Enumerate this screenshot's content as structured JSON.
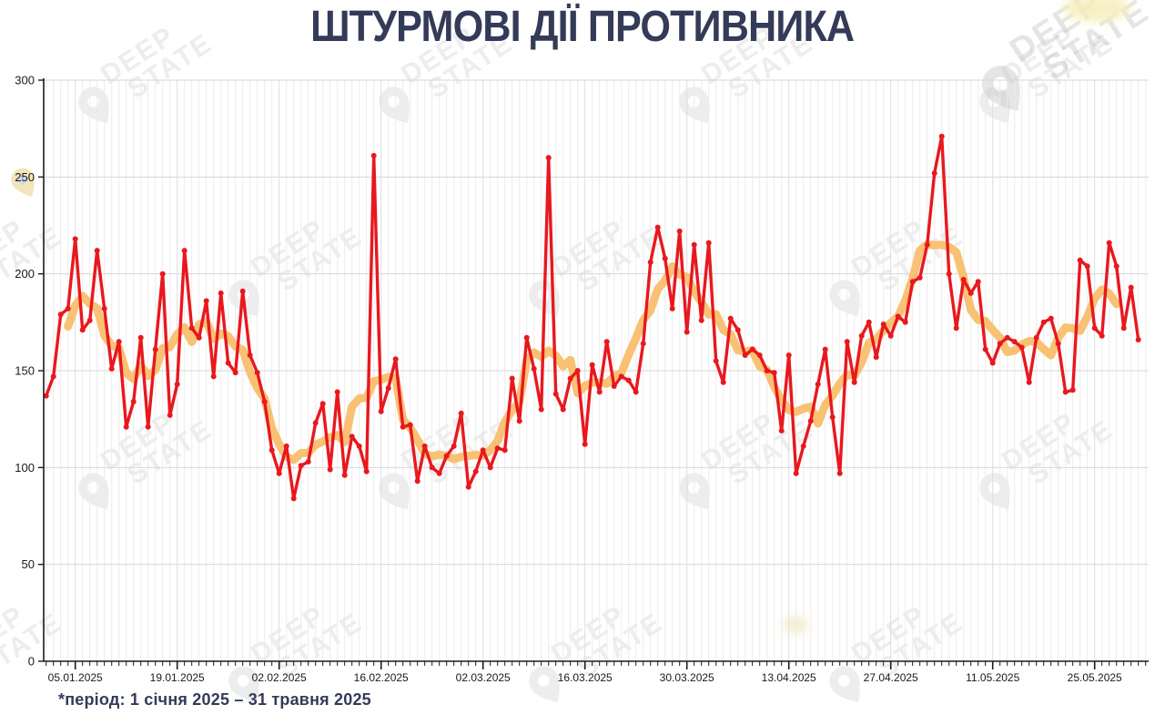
{
  "watermark": {
    "line1": "DEEP",
    "line2": "STATE"
  },
  "chart_data": {
    "type": "line",
    "title": "ШТУРМОВІ ДІЇ ПРОТИВНИКА",
    "footnote": "*період: 1 січня 2025 – 31 травня 2025",
    "start_date": "01.01.2025",
    "end_date": "31.05.2025",
    "ylim": [
      0,
      300
    ],
    "y_ticks": [
      0,
      50,
      100,
      150,
      200,
      250,
      300
    ],
    "x_ticks": [
      {
        "day": 5,
        "label": "05.01.2025"
      },
      {
        "day": 19,
        "label": "19.01.2025"
      },
      {
        "day": 33,
        "label": "02.02.2025"
      },
      {
        "day": 47,
        "label": "16.02.2025"
      },
      {
        "day": 61,
        "label": "02.03.2025"
      },
      {
        "day": 75,
        "label": "16.03.2025"
      },
      {
        "day": 89,
        "label": "30.03.2025"
      },
      {
        "day": 103,
        "label": "13.04.2025"
      },
      {
        "day": 117,
        "label": "27.04.2025"
      },
      {
        "day": 131,
        "label": "11.05.2025"
      },
      {
        "day": 145,
        "label": "25.05.2025"
      }
    ],
    "grid": "daily vertical lines, horizontal lines every 50",
    "legend_position": "none",
    "series": [
      {
        "name": "daily-assaults",
        "color": "#e8181e",
        "markers": true,
        "values": [
          137,
          147,
          179,
          182,
          218,
          171,
          176,
          212,
          182,
          151,
          165,
          121,
          134,
          167,
          121,
          161,
          200,
          127,
          143,
          212,
          172,
          167,
          186,
          147,
          190,
          154,
          149,
          191,
          158,
          149,
          134,
          109,
          97,
          111,
          84,
          101,
          103,
          123,
          133,
          99,
          139,
          96,
          116,
          111,
          98,
          261,
          129,
          141,
          156,
          121,
          122,
          93,
          111,
          100,
          97,
          106,
          111,
          128,
          90,
          98,
          109,
          100,
          110,
          109,
          146,
          124,
          167,
          151,
          130,
          260,
          138,
          130,
          146,
          150,
          112,
          153,
          139,
          165,
          142,
          147,
          145,
          139,
          164,
          206,
          224,
          208,
          182,
          222,
          170,
          215,
          176,
          216,
          155,
          144,
          177,
          171,
          158,
          161,
          158,
          150,
          149,
          119,
          158,
          97,
          111,
          124,
          143,
          161,
          126,
          97,
          165,
          144,
          168,
          175,
          157,
          174,
          168,
          178,
          175,
          196,
          198,
          215,
          252,
          271,
          200,
          172,
          197,
          190,
          196,
          161,
          154,
          164,
          167,
          165,
          162,
          144,
          167,
          175,
          177,
          164,
          139,
          140,
          207,
          204,
          172,
          168,
          216,
          204,
          172,
          193,
          166
        ]
      },
      {
        "name": "smoothed-trend-7day-average",
        "color": "#f8c173",
        "markers": false,
        "derived": "centered_moving_average_window_7_of_daily_assaults"
      }
    ]
  }
}
